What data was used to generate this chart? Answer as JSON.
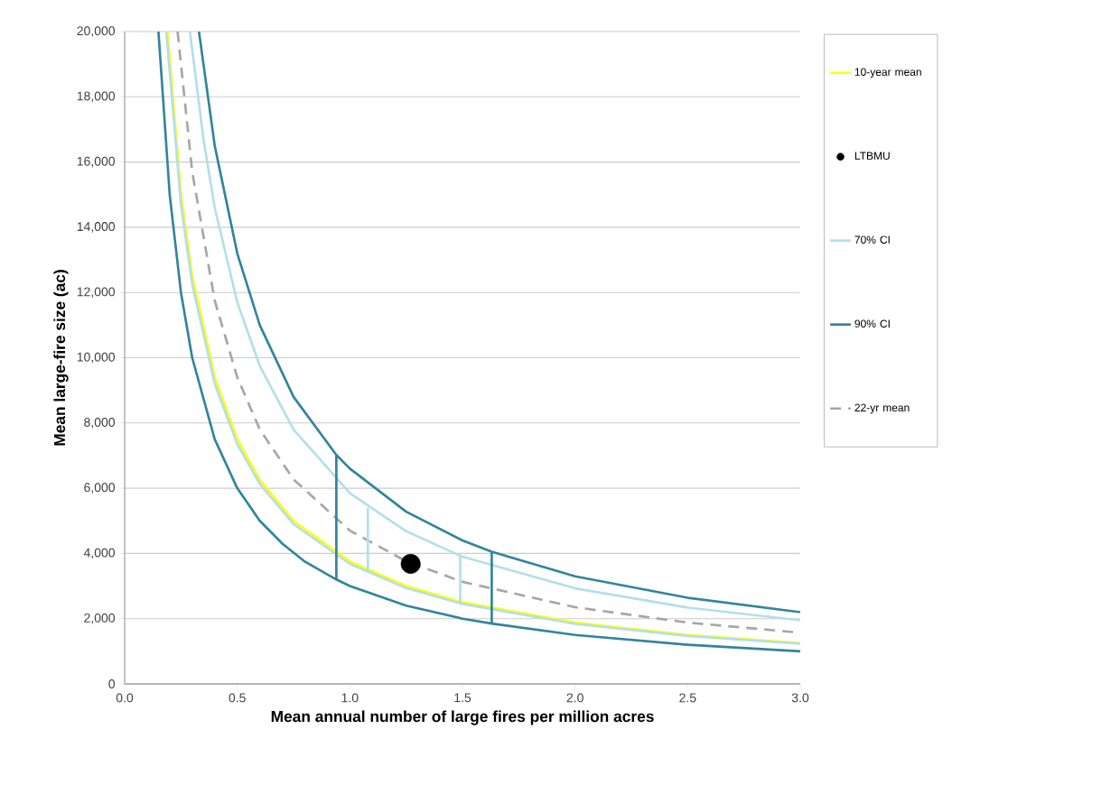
{
  "chart_data": {
    "type": "line",
    "xlabel": "Mean annual number of large fires per million acres",
    "ylabel": "Mean large-fire size (ac)",
    "xlim": [
      0,
      3.0
    ],
    "xticks": [
      {
        "value": 0,
        "label": "0.0"
      },
      {
        "value": 0.5,
        "label": "0.5"
      },
      {
        "value": 1,
        "label": "1.0"
      },
      {
        "value": 1.5,
        "label": "1.5"
      },
      {
        "value": 2,
        "label": "2.0"
      },
      {
        "value": 2.5,
        "label": "2.5"
      },
      {
        "value": 3,
        "label": "3.0"
      }
    ],
    "ylim": [
      0,
      20000
    ],
    "yticks": [
      {
        "value": 0,
        "label": "0"
      },
      {
        "value": 2000,
        "label": "2,000"
      },
      {
        "value": 4000,
        "label": "4,000"
      },
      {
        "value": 6000,
        "label": "6,000"
      },
      {
        "value": 8000,
        "label": "8,000"
      },
      {
        "value": 10000,
        "label": "10,000"
      },
      {
        "value": 12000,
        "label": "12,000"
      },
      {
        "value": 14000,
        "label": "14,000"
      },
      {
        "value": 16000,
        "label": "16,000"
      },
      {
        "value": 18000,
        "label": "18,000"
      },
      {
        "value": 20000,
        "label": "20,000"
      }
    ],
    "grid": "y",
    "legend": "right",
    "marker": "none",
    "series": [
      {
        "name": "10-year mean",
        "color": "#ffff00",
        "line_style": "solid",
        "x": [
          0.19,
          0.25,
          0.3,
          0.4,
          0.5,
          0.6,
          0.75,
          1.0,
          1.25,
          1.5,
          2.0,
          2.5,
          3.0
        ],
        "values": [
          20000,
          15000,
          12500,
          9400,
          7500,
          6250,
          5000,
          3750,
          3000,
          2500,
          1880,
          1500,
          1250
        ]
      },
      {
        "name": "LTBMU",
        "type": "scatter",
        "marker": "circle",
        "color": "#000000",
        "x": [
          1.27
        ],
        "values": [
          3680
        ]
      },
      {
        "name": "70% CI",
        "color": "#b4dfe8",
        "line_style": "solid",
        "x": [
          0.29,
          0.35,
          0.4,
          0.5,
          0.6,
          0.75,
          1.0,
          1.25,
          1.5,
          2.0,
          2.5,
          3.0
        ],
        "values": [
          20000,
          16700,
          14600,
          11700,
          9750,
          7800,
          5850,
          4680,
          3900,
          2930,
          2340,
          1950
        ]
      },
      {
        "name": "90% CI",
        "color": "#31859c",
        "line_style": "solid",
        "x": [
          0.33,
          0.4,
          0.5,
          0.6,
          0.75,
          0.94,
          1.0,
          1.25,
          1.5,
          1.63,
          2.0,
          2.5,
          3.0
        ],
        "values": [
          20000,
          16500,
          13200,
          11000,
          8800,
          7020,
          6600,
          5280,
          4400,
          4050,
          3300,
          2640,
          2200
        ]
      },
      {
        "name": "22-yr mean",
        "color": "#a6a6a6",
        "line_style": "dashed",
        "x": [
          0.235,
          0.3,
          0.4,
          0.5,
          0.6,
          0.75,
          1.0,
          1.25,
          1.5,
          2.0,
          2.5,
          3.0
        ],
        "values": [
          20000,
          15700,
          11750,
          9400,
          7800,
          6270,
          4700,
          3760,
          3130,
          2350,
          1880,
          1570
        ]
      },
      {
        "color": "#b4dfe8",
        "line_style": "solid",
        "x": [
          0.185,
          0.25,
          0.3,
          0.4,
          0.5,
          0.6,
          0.75,
          1.0,
          1.25,
          1.5,
          2.0,
          2.5,
          3.0
        ],
        "values": [
          20000,
          14700,
          12250,
          9200,
          7350,
          6130,
          4900,
          3680,
          2940,
          2450,
          1840,
          1470,
          1230
        ]
      },
      {
        "color": "#31859c",
        "line_style": "solid",
        "x": [
          0.15,
          0.2,
          0.25,
          0.3,
          0.4,
          0.5,
          0.6,
          0.7,
          0.8,
          0.94,
          1.0,
          1.25,
          1.5,
          1.63,
          2.0,
          2.5,
          3.0
        ],
        "values": [
          20000,
          15000,
          12000,
          10000,
          7500,
          6000,
          5000,
          4300,
          3750,
          3200,
          3000,
          2400,
          2000,
          1850,
          1500,
          1200,
          1000
        ]
      },
      {
        "color": "#31859c",
        "line_style": "solid",
        "x": [
          0.94,
          0.94
        ],
        "values": [
          3200,
          7020
        ]
      },
      {
        "color": "#31859c",
        "line_style": "solid",
        "x": [
          1.63,
          1.63
        ],
        "values": [
          1850,
          4050
        ]
      },
      {
        "color": "#b4dfe8",
        "line_style": "solid",
        "x": [
          1.08,
          1.08
        ],
        "values": [
          3420,
          5400
        ]
      },
      {
        "color": "#b4dfe8",
        "line_style": "solid",
        "x": [
          1.49,
          1.49
        ],
        "values": [
          2480,
          3950
        ]
      }
    ]
  }
}
